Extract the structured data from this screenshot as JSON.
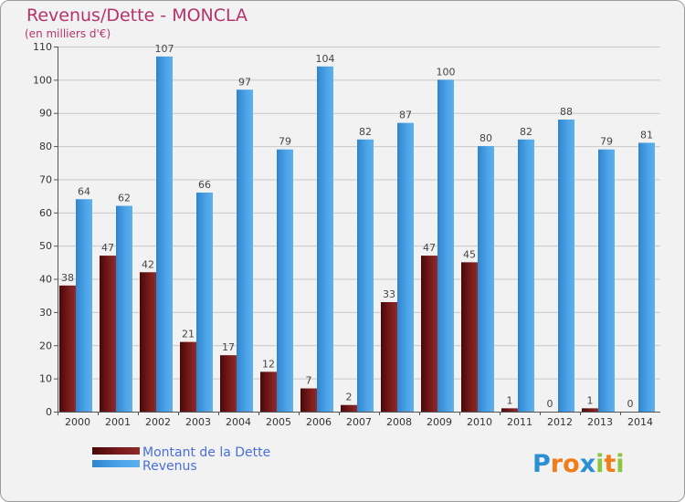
{
  "chart_data": {
    "type": "bar",
    "title": "Revenus/Dette - MONCLA",
    "subtitle": "(en milliers d'€)",
    "categories": [
      "2000",
      "2001",
      "2002",
      "2003",
      "2004",
      "2005",
      "2006",
      "2007",
      "2008",
      "2009",
      "2010",
      "2011",
      "2012",
      "2013",
      "2014"
    ],
    "series": [
      {
        "name": "Montant de la Dette",
        "values": [
          38,
          47,
          42,
          21,
          17,
          12,
          7,
          2,
          33,
          47,
          45,
          1,
          0,
          1,
          0
        ],
        "color": "#7a1c1c"
      },
      {
        "name": "Revenus",
        "values": [
          64,
          62,
          107,
          66,
          97,
          79,
          104,
          82,
          87,
          100,
          80,
          82,
          88,
          79,
          81
        ],
        "color": "#4da3e6"
      }
    ],
    "ylim": [
      0,
      110
    ],
    "yticks": [
      0,
      10,
      20,
      30,
      40,
      50,
      60,
      70,
      80,
      90,
      100,
      110
    ],
    "grid": true,
    "legend_position": "bottom-left"
  },
  "logo": {
    "text": "Proxiti",
    "letters": [
      "P",
      "r",
      "o",
      "x",
      "i",
      "t",
      "i"
    ],
    "colors": [
      "#2a8fd4",
      "#f07c1a",
      "#f07c1a",
      "#2a8fd4",
      "#8cc63f",
      "#f07c1a",
      "#8cc63f"
    ]
  }
}
